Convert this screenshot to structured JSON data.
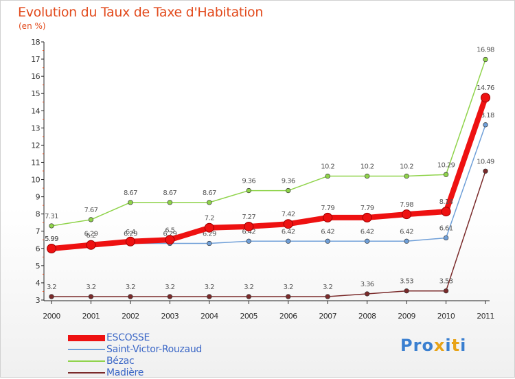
{
  "header": {
    "title": "Evolution du Taux de Taxe d'Habitation",
    "unit": "(en %)"
  },
  "logo": {
    "text": "Proxiti",
    "letters": [
      {
        "ch": "P",
        "color": "#3a7fd0"
      },
      {
        "ch": "r",
        "color": "#3a7fd0"
      },
      {
        "ch": "o",
        "color": "#3a7fd0"
      },
      {
        "ch": "x",
        "color": "#e8a317"
      },
      {
        "ch": "i",
        "color": "#3a7fd0"
      },
      {
        "ch": "t",
        "color": "#e8a317"
      },
      {
        "ch": "i",
        "color": "#3a7fd0"
      }
    ]
  },
  "chart_data": {
    "type": "line",
    "title": "Evolution du Taux de Taxe d'Habitation",
    "ylabel": "(en %)",
    "xlabel": "",
    "x": [
      "2000",
      "2001",
      "2002",
      "2003",
      "2004",
      "2005",
      "2006",
      "2007",
      "2008",
      "2009",
      "2010",
      "2011"
    ],
    "ylim": [
      3,
      18
    ],
    "yticks": [
      3,
      4,
      5,
      6,
      7,
      8,
      9,
      10,
      11,
      12,
      13,
      14,
      15,
      16,
      17,
      18
    ],
    "grid": false,
    "legend": "bottom-left",
    "series": [
      {
        "name": "Madière",
        "color": "#7a2a2a",
        "values": [
          3.2,
          3.2,
          3.2,
          3.2,
          3.2,
          3.2,
          3.2,
          3.2,
          3.36,
          3.53,
          3.53,
          10.49
        ],
        "labels": [
          "3.2",
          "3.2",
          "3.2",
          "3.2",
          "3.2",
          "3.2",
          "3.2",
          "3.2",
          "3.36",
          "3.53",
          "3.53",
          "10.49"
        ]
      },
      {
        "name": "Bézac",
        "color": "#8fd34a",
        "values": [
          7.31,
          7.67,
          8.67,
          8.67,
          8.67,
          9.36,
          9.36,
          10.2,
          10.2,
          10.2,
          10.29,
          16.98
        ],
        "labels": [
          "7.31",
          "7.67",
          "8.67",
          "8.67",
          "8.67",
          "9.36",
          "9.36",
          "10.2",
          "10.2",
          "10.2",
          "10.29",
          "16.98"
        ]
      },
      {
        "name": "Saint-Victor-Rouzaud",
        "color": "#6f9fd8",
        "values": [
          5.99,
          6.29,
          6.29,
          6.29,
          6.29,
          6.42,
          6.42,
          6.42,
          6.42,
          6.42,
          6.61,
          13.18
        ],
        "labels": [
          "5.99",
          "6.29",
          "6.29",
          "6.29",
          "6.29",
          "6.42",
          "6.42",
          "6.42",
          "6.42",
          "6.42",
          "6.61",
          "13.18"
        ]
      },
      {
        "name": "ESCOSSE",
        "color": "#ee1111",
        "values": [
          5.99,
          6.2,
          6.4,
          6.5,
          7.2,
          7.27,
          7.42,
          7.79,
          7.79,
          7.98,
          8.14,
          14.76
        ],
        "labels": [
          "5.99",
          "6.2",
          "6.4",
          "6.5",
          "7.2",
          "7.27",
          "7.42",
          "7.79",
          "7.79",
          "7.98",
          "8.14",
          "14.76"
        ]
      }
    ],
    "legend_order": [
      "ESCOSSE",
      "Saint-Victor-Rouzaud",
      "Bézac",
      "Madière"
    ]
  }
}
